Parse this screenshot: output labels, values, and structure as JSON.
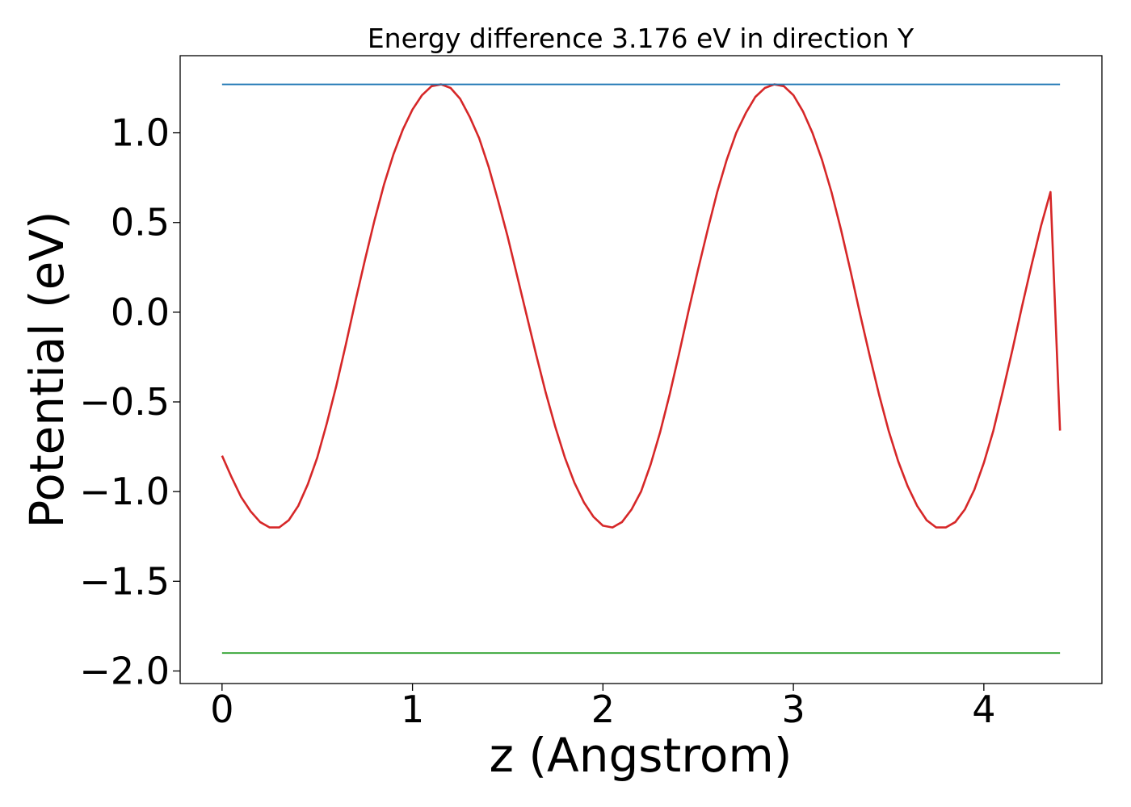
{
  "chart_data": {
    "type": "line",
    "title": "Energy difference 3.176 eV in direction Y",
    "xlabel": "z (Angstrom)",
    "ylabel": "Potential (eV)",
    "xlim": [
      -0.22,
      4.62
    ],
    "ylim": [
      -2.07,
      1.43
    ],
    "xticks": [
      0,
      1,
      2,
      3,
      4
    ],
    "xtick_labels": [
      "0",
      "1",
      "2",
      "3",
      "4"
    ],
    "yticks": [
      1.0,
      0.5,
      0.0,
      -0.5,
      -1.0,
      -1.5,
      -2.0
    ],
    "ytick_labels": [
      "1.0",
      "0.5",
      "0.0",
      "−0.5",
      "−1.0",
      "−1.5",
      "−2.0"
    ],
    "grid": false,
    "legend": "none",
    "series": [
      {
        "color": "#d62728",
        "x": [
          0.0,
          0.05,
          0.1,
          0.15,
          0.2,
          0.25,
          0.3,
          0.35,
          0.4,
          0.45,
          0.5,
          0.55,
          0.6,
          0.65,
          0.7,
          0.75,
          0.8,
          0.85,
          0.9,
          0.95,
          1.0,
          1.05,
          1.1,
          1.15,
          1.2,
          1.25,
          1.3,
          1.35,
          1.4,
          1.45,
          1.5,
          1.55,
          1.6,
          1.65,
          1.7,
          1.75,
          1.8,
          1.85,
          1.9,
          1.95,
          2.0,
          2.05,
          2.1,
          2.15,
          2.2,
          2.25,
          2.3,
          2.35,
          2.4,
          2.45,
          2.5,
          2.55,
          2.6,
          2.65,
          2.7,
          2.75,
          2.8,
          2.85,
          2.9,
          2.95,
          3.0,
          3.05,
          3.1,
          3.15,
          3.2,
          3.25,
          3.3,
          3.35,
          3.4,
          3.45,
          3.5,
          3.55,
          3.6,
          3.65,
          3.7,
          3.75,
          3.8,
          3.85,
          3.9,
          3.95,
          4.0,
          4.05,
          4.1,
          4.15,
          4.2,
          4.25,
          4.3,
          4.35,
          4.4
        ],
        "y": [
          -0.8,
          -0.92,
          -1.03,
          -1.11,
          -1.17,
          -1.2,
          -1.2,
          -1.16,
          -1.08,
          -0.96,
          -0.81,
          -0.62,
          -0.41,
          -0.18,
          0.06,
          0.29,
          0.51,
          0.71,
          0.88,
          1.02,
          1.13,
          1.21,
          1.26,
          1.27,
          1.25,
          1.19,
          1.09,
          0.97,
          0.81,
          0.62,
          0.42,
          0.2,
          -0.02,
          -0.24,
          -0.45,
          -0.64,
          -0.81,
          -0.95,
          -1.06,
          -1.14,
          -1.19,
          -1.2,
          -1.17,
          -1.1,
          -1.0,
          -0.85,
          -0.67,
          -0.46,
          -0.23,
          0.01,
          0.24,
          0.46,
          0.67,
          0.85,
          1.0,
          1.11,
          1.2,
          1.25,
          1.27,
          1.26,
          1.21,
          1.12,
          1.0,
          0.85,
          0.67,
          0.46,
          0.23,
          -0.01,
          -0.24,
          -0.46,
          -0.66,
          -0.83,
          -0.97,
          -1.08,
          -1.16,
          -1.2,
          -1.2,
          -1.17,
          -1.1,
          -0.99,
          -0.84,
          -0.66,
          -0.44,
          -0.21,
          0.03,
          0.26,
          0.48,
          0.67,
          -0.66
        ]
      },
      {
        "color": "#1f77b4",
        "x": [
          0.0,
          4.4
        ],
        "y": [
          1.27,
          1.27
        ]
      },
      {
        "color": "#2ca02c",
        "x": [
          0.0,
          4.4
        ],
        "y": [
          -1.9,
          -1.9
        ]
      }
    ]
  }
}
